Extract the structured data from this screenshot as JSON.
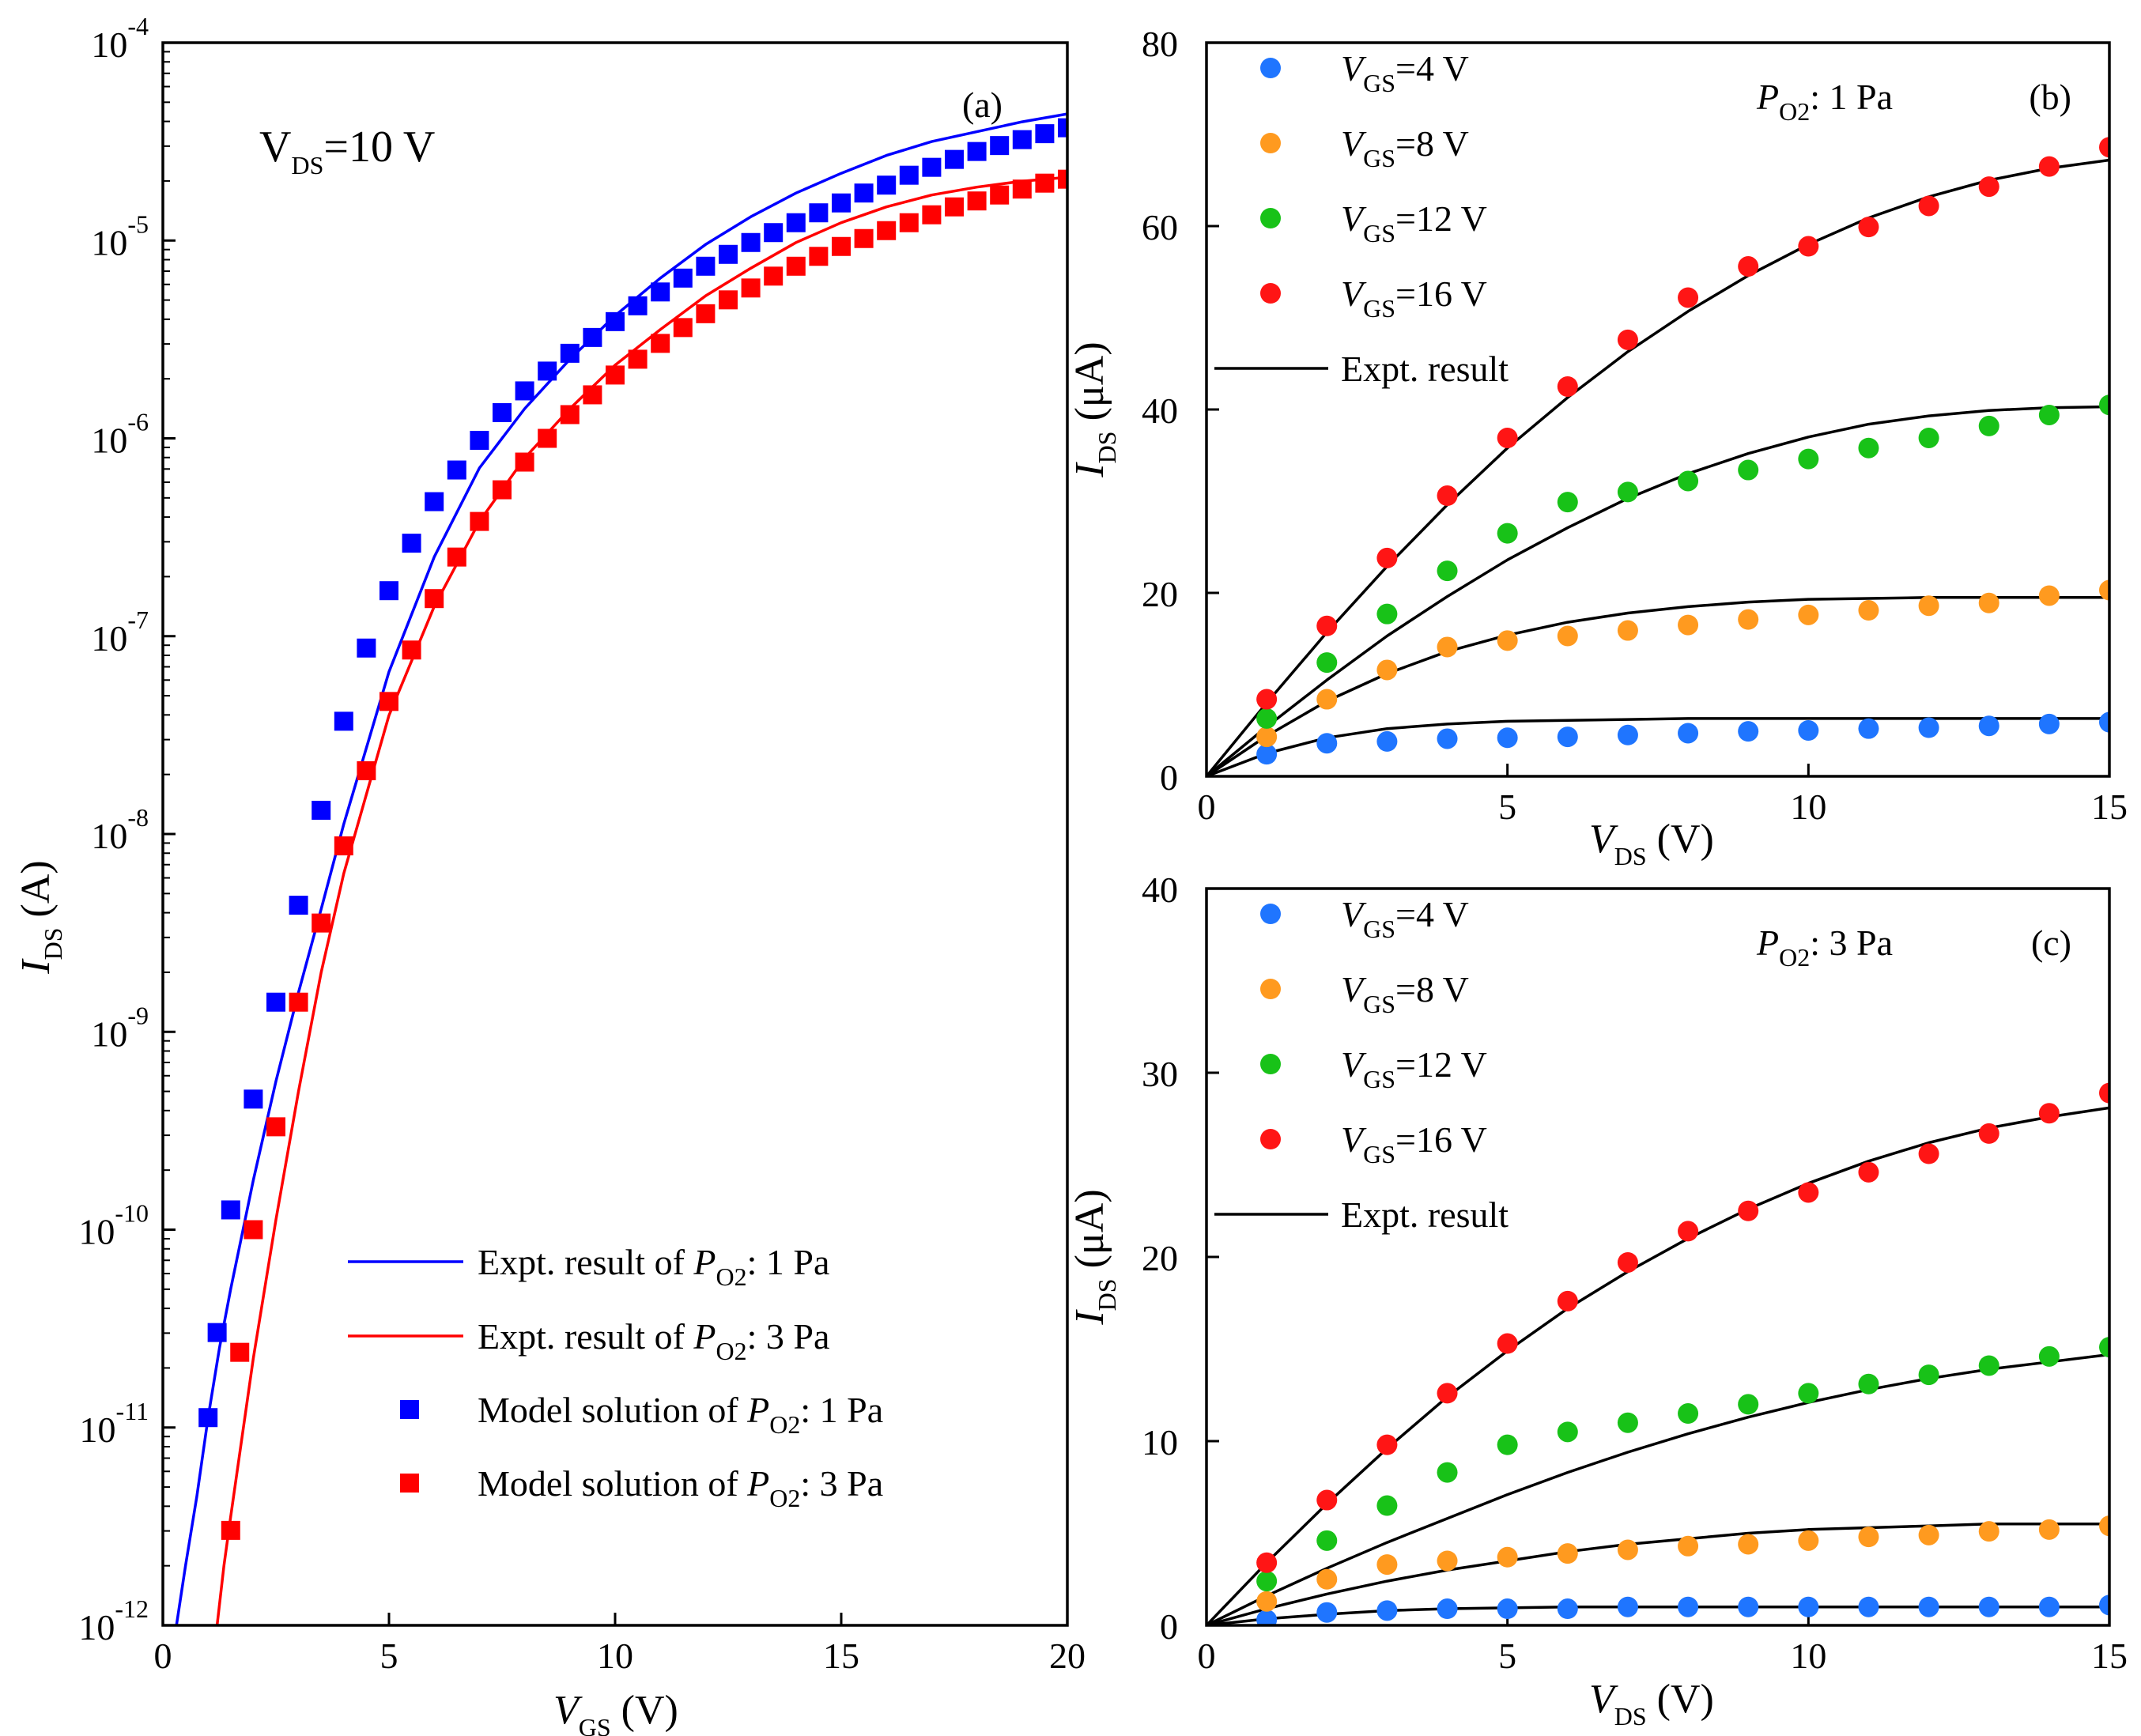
{
  "colors": {
    "blue": "#0000ff",
    "red": "#ff0000",
    "dot_blue": "#1f75ff",
    "dot_orange": "#ff9a1f",
    "dot_green": "#18c218",
    "dot_red": "#ff1515",
    "black": "#000000"
  },
  "chart_data": [
    {
      "id": "a",
      "panel_label": "(a)",
      "type": "line",
      "yscale": "log",
      "xlabel": {
        "main": "V",
        "sub": "GS",
        "rest": " (V)"
      },
      "ylabel": {
        "main": "I",
        "sub": "DS",
        "rest": " (A)"
      },
      "xlim": [
        0,
        20
      ],
      "ylim_exp": [
        -12,
        -4
      ],
      "xticks": [
        "0",
        "5",
        "10",
        "15",
        "20"
      ],
      "yticks": [
        {
          "base": "10",
          "exp": "-12"
        },
        {
          "base": "10",
          "exp": "-11"
        },
        {
          "base": "10",
          "exp": "-10"
        },
        {
          "base": "10",
          "exp": "-9"
        },
        {
          "base": "10",
          "exp": "-8"
        },
        {
          "base": "10",
          "exp": "-7"
        },
        {
          "base": "10",
          "exp": "-6"
        },
        {
          "base": "10",
          "exp": "-5"
        },
        {
          "base": "10",
          "exp": "-4"
        }
      ],
      "annotation": {
        "main": "V",
        "sub": "DS",
        "rest": "=10 V"
      },
      "legend_position": "bottom-right",
      "legend": [
        {
          "pre": "Expt. result of ",
          "sym": "P",
          "sub": "O2",
          "post": ": 1 Pa"
        },
        {
          "pre": "Expt. result of ",
          "sym": "P",
          "sub": "O2",
          "post": ": 3 Pa"
        },
        {
          "pre": "Model solution of ",
          "sym": "P",
          "sub": "O2",
          "post": ": 1 Pa"
        },
        {
          "pre": "Model solution of ",
          "sym": "P",
          "sub": "O2",
          "post": ": 3 Pa"
        }
      ],
      "series": [
        {
          "name": "Expt. result of PO2: 1 Pa",
          "kind": "line",
          "color": "blue",
          "x": [
            0.3,
            0.5,
            0.75,
            1.0,
            1.25,
            1.5,
            2.0,
            2.5,
            3.0,
            3.5,
            4.0,
            5.0,
            6.0,
            7.0,
            8.0,
            9.0,
            10.0,
            11.0,
            12.0,
            13.0,
            14.0,
            15.0,
            16.0,
            17.0,
            18.0,
            19.0,
            20.0
          ],
          "log10y": [
            -12.0,
            -11.7,
            -11.35,
            -10.95,
            -10.6,
            -10.3,
            -9.75,
            -9.25,
            -8.8,
            -8.38,
            -7.95,
            -7.18,
            -6.6,
            -6.15,
            -5.85,
            -5.6,
            -5.38,
            -5.19,
            -5.02,
            -4.88,
            -4.76,
            -4.66,
            -4.57,
            -4.5,
            -4.45,
            -4.4,
            -4.36
          ]
        },
        {
          "name": "Expt. result of PO2: 3 Pa",
          "kind": "line",
          "color": "red",
          "x": [
            1.2,
            1.35,
            1.5,
            1.75,
            2.0,
            2.5,
            3.0,
            3.5,
            4.0,
            5.0,
            6.0,
            7.0,
            8.0,
            9.0,
            10.0,
            11.0,
            12.0,
            13.0,
            14.0,
            15.0,
            16.0,
            17.0,
            18.0,
            19.0,
            20.0
          ],
          "log10y": [
            -12.0,
            -11.7,
            -11.45,
            -11.05,
            -10.65,
            -9.95,
            -9.3,
            -8.7,
            -8.2,
            -7.4,
            -6.85,
            -6.42,
            -6.1,
            -5.85,
            -5.63,
            -5.45,
            -5.28,
            -5.14,
            -5.01,
            -4.91,
            -4.83,
            -4.77,
            -4.73,
            -4.7,
            -4.68
          ]
        },
        {
          "name": "Model solution of PO2: 1 Pa",
          "kind": "square",
          "color": "blue",
          "x": [
            1.0,
            1.2,
            1.5,
            2.0,
            2.5,
            3.0,
            3.5,
            4.0,
            4.5,
            5.0,
            5.5,
            6.0,
            6.5,
            7.0,
            7.5,
            8.0,
            8.5,
            9.0,
            9.5,
            10.0,
            10.5,
            11.0,
            11.5,
            12.0,
            12.5,
            13.0,
            13.5,
            14.0,
            14.5,
            15.0,
            15.5,
            16.0,
            16.5,
            17.0,
            17.5,
            18.0,
            18.5,
            19.0,
            19.5,
            20.0
          ],
          "log10y": [
            -10.95,
            -10.52,
            -9.9,
            -9.34,
            -8.85,
            -8.36,
            -7.88,
            -7.43,
            -7.06,
            -6.77,
            -6.53,
            -6.32,
            -6.16,
            -6.01,
            -5.87,
            -5.76,
            -5.66,
            -5.57,
            -5.49,
            -5.41,
            -5.33,
            -5.26,
            -5.19,
            -5.13,
            -5.07,
            -5.01,
            -4.96,
            -4.91,
            -4.86,
            -4.81,
            -4.76,
            -4.72,
            -4.67,
            -4.63,
            -4.59,
            -4.55,
            -4.52,
            -4.49,
            -4.46,
            -4.43
          ]
        },
        {
          "name": "Model solution of PO2: 3 Pa",
          "kind": "square",
          "color": "red",
          "x": [
            1.5,
            1.7,
            2.0,
            2.5,
            3.0,
            3.5,
            4.0,
            4.5,
            5.0,
            5.5,
            6.0,
            6.5,
            7.0,
            7.5,
            8.0,
            8.5,
            9.0,
            9.5,
            10.0,
            10.5,
            11.0,
            11.5,
            12.0,
            12.5,
            13.0,
            13.5,
            14.0,
            14.5,
            15.0,
            15.5,
            16.0,
            16.5,
            17.0,
            17.5,
            18.0,
            18.5,
            19.0,
            19.5,
            20.0
          ],
          "log10y": [
            -11.52,
            -10.62,
            -10.0,
            -9.48,
            -8.85,
            -8.45,
            -8.06,
            -7.68,
            -7.33,
            -7.07,
            -6.81,
            -6.6,
            -6.42,
            -6.26,
            -6.12,
            -6.0,
            -5.88,
            -5.78,
            -5.68,
            -5.6,
            -5.52,
            -5.44,
            -5.37,
            -5.3,
            -5.24,
            -5.18,
            -5.13,
            -5.08,
            -5.03,
            -4.99,
            -4.95,
            -4.91,
            -4.87,
            -4.83,
            -4.8,
            -4.77,
            -4.74,
            -4.71,
            -4.69
          ]
        }
      ]
    },
    {
      "id": "b",
      "panel_label": "(b)",
      "type": "scatter",
      "condition": {
        "sym": "P",
        "sub": "O2",
        "post": ": 1 Pa"
      },
      "xlabel": {
        "main": "V",
        "sub": "DS",
        "rest": " (V)"
      },
      "ylabel": {
        "main": "I",
        "sub": "DS",
        "rest": " (μA)"
      },
      "xlim": [
        0,
        15
      ],
      "ylim": [
        0,
        80
      ],
      "xticks": [
        0,
        5,
        10,
        15
      ],
      "yticks": [
        0,
        20,
        40,
        60,
        80
      ],
      "legend_position": "top-left",
      "legend": [
        {
          "main": "V",
          "sub": "GS",
          "rest": "=4 V",
          "color": "dot_blue"
        },
        {
          "main": "V",
          "sub": "GS",
          "rest": "=8 V",
          "color": "dot_orange"
        },
        {
          "main": "V",
          "sub": "GS",
          "rest": "=12 V",
          "color": "dot_green"
        },
        {
          "main": "V",
          "sub": "GS",
          "rest": "=16 V",
          "color": "dot_red"
        },
        {
          "line": true,
          "text": "Expt. result"
        }
      ],
      "x_points": [
        1,
        2,
        3,
        4,
        5,
        6,
        7,
        8,
        9,
        10,
        11,
        12,
        13,
        14,
        15
      ],
      "series": [
        {
          "name": "VGS=4 V",
          "color": "dot_blue",
          "points": [
            2.4,
            3.6,
            3.8,
            4.1,
            4.2,
            4.3,
            4.5,
            4.7,
            4.9,
            5.0,
            5.2,
            5.3,
            5.5,
            5.7,
            5.9
          ],
          "fit_x": [
            0,
            1,
            2,
            3,
            4,
            5,
            6,
            7,
            8,
            9,
            10,
            11,
            12,
            13,
            14,
            15
          ],
          "fit_y": [
            0,
            2.5,
            4.2,
            5.2,
            5.7,
            6.0,
            6.1,
            6.2,
            6.3,
            6.3,
            6.3,
            6.3,
            6.3,
            6.3,
            6.3,
            6.3
          ]
        },
        {
          "name": "VGS=8 V",
          "color": "dot_orange",
          "points": [
            4.3,
            8.4,
            11.6,
            14.1,
            14.8,
            15.3,
            15.9,
            16.5,
            17.1,
            17.6,
            18.1,
            18.6,
            18.9,
            19.7,
            20.3
          ],
          "fit_x": [
            0,
            1,
            2,
            3,
            4,
            5,
            6,
            7,
            8,
            9,
            10,
            11,
            12,
            13,
            14,
            15
          ],
          "fit_y": [
            0,
            4.4,
            8.2,
            11.2,
            13.6,
            15.4,
            16.8,
            17.8,
            18.5,
            19.0,
            19.3,
            19.4,
            19.5,
            19.5,
            19.5,
            19.5
          ]
        },
        {
          "name": "VGS=12 V",
          "color": "dot_green",
          "points": [
            6.3,
            12.4,
            17.7,
            22.4,
            26.5,
            29.9,
            31.0,
            32.2,
            33.4,
            34.6,
            35.8,
            36.9,
            38.2,
            39.4,
            40.5
          ],
          "fit_x": [
            0,
            1,
            2,
            3,
            4,
            5,
            6,
            7,
            8,
            9,
            10,
            11,
            12,
            13,
            14,
            15
          ],
          "fit_y": [
            0,
            5.4,
            10.5,
            15.3,
            19.6,
            23.6,
            27.1,
            30.3,
            33.0,
            35.2,
            37.0,
            38.4,
            39.3,
            39.9,
            40.2,
            40.3
          ]
        },
        {
          "name": "VGS=16 V",
          "color": "dot_red",
          "points": [
            8.4,
            16.4,
            23.8,
            30.6,
            36.9,
            42.5,
            47.6,
            52.2,
            55.6,
            57.8,
            59.9,
            62.2,
            64.3,
            66.5,
            68.6
          ],
          "fit_x": [
            0,
            1,
            2,
            3,
            4,
            5,
            6,
            7,
            8,
            9,
            10,
            11,
            12,
            13,
            14,
            15
          ],
          "fit_y": [
            0,
            8.0,
            15.7,
            22.9,
            29.6,
            35.8,
            41.3,
            46.3,
            50.7,
            54.6,
            58.0,
            60.9,
            63.2,
            65.0,
            66.3,
            67.2
          ]
        }
      ]
    },
    {
      "id": "c",
      "panel_label": "(c)",
      "type": "scatter",
      "condition": {
        "sym": "P",
        "sub": "O2",
        "post": ": 3 Pa"
      },
      "xlabel": {
        "main": "V",
        "sub": "DS",
        "rest": " (V)"
      },
      "ylabel": {
        "main": "I",
        "sub": "DS",
        "rest": " (μA)"
      },
      "xlim": [
        0,
        15
      ],
      "ylim": [
        0,
        40
      ],
      "xticks": [
        0,
        5,
        10,
        15
      ],
      "yticks": [
        0,
        10,
        20,
        30,
        40
      ],
      "legend_position": "top-left",
      "legend": [
        {
          "main": "V",
          "sub": "GS",
          "rest": "=4 V",
          "color": "dot_blue"
        },
        {
          "main": "V",
          "sub": "GS",
          "rest": "=8 V",
          "color": "dot_orange"
        },
        {
          "main": "V",
          "sub": "GS",
          "rest": "=12 V",
          "color": "dot_green"
        },
        {
          "main": "V",
          "sub": "GS",
          "rest": "=16 V",
          "color": "dot_red"
        },
        {
          "line": true,
          "text": "Expt. result"
        }
      ],
      "x_points": [
        1,
        2,
        3,
        4,
        5,
        6,
        7,
        8,
        9,
        10,
        11,
        12,
        13,
        14,
        15
      ],
      "series": [
        {
          "name": "VGS=4 V",
          "color": "dot_blue",
          "points": [
            0.3,
            0.7,
            0.8,
            0.9,
            0.9,
            0.9,
            1.0,
            1.0,
            1.0,
            1.0,
            1.0,
            1.0,
            1.0,
            1.0,
            1.1
          ],
          "fit_x": [
            0,
            1,
            2,
            3,
            4,
            5,
            6,
            7,
            8,
            9,
            10,
            11,
            12,
            13,
            14,
            15
          ],
          "fit_y": [
            0,
            0.35,
            0.6,
            0.8,
            0.9,
            0.95,
            1.0,
            1.0,
            1.0,
            1.0,
            1.0,
            1.0,
            1.0,
            1.0,
            1.0,
            1.0
          ]
        },
        {
          "name": "VGS=8 V",
          "color": "dot_orange",
          "points": [
            1.3,
            2.5,
            3.3,
            3.5,
            3.7,
            3.9,
            4.1,
            4.3,
            4.4,
            4.6,
            4.8,
            4.9,
            5.1,
            5.2,
            5.4
          ],
          "fit_x": [
            0,
            1,
            2,
            3,
            4,
            5,
            6,
            7,
            8,
            9,
            10,
            11,
            12,
            13,
            14,
            15
          ],
          "fit_y": [
            0,
            0.9,
            1.7,
            2.4,
            3.0,
            3.5,
            4.0,
            4.4,
            4.7,
            5.0,
            5.2,
            5.3,
            5.4,
            5.5,
            5.5,
            5.5
          ]
        },
        {
          "name": "VGS=12 V",
          "color": "dot_green",
          "points": [
            2.4,
            4.6,
            6.5,
            8.3,
            9.8,
            10.5,
            11.0,
            11.5,
            12.0,
            12.6,
            13.1,
            13.6,
            14.1,
            14.6,
            15.1
          ],
          "fit_x": [
            0,
            1,
            2,
            3,
            4,
            5,
            6,
            7,
            8,
            9,
            10,
            11,
            12,
            13,
            14,
            15
          ],
          "fit_y": [
            0,
            1.6,
            3.1,
            4.5,
            5.8,
            7.1,
            8.3,
            9.4,
            10.4,
            11.3,
            12.1,
            12.8,
            13.4,
            13.9,
            14.3,
            14.7
          ]
        },
        {
          "name": "VGS=16 V",
          "color": "dot_red",
          "points": [
            3.4,
            6.8,
            9.8,
            12.6,
            15.3,
            17.6,
            19.7,
            21.4,
            22.5,
            23.5,
            24.6,
            25.6,
            26.7,
            27.8,
            28.9
          ],
          "fit_x": [
            0,
            1,
            2,
            3,
            4,
            5,
            6,
            7,
            8,
            9,
            10,
            11,
            12,
            13,
            14,
            15
          ],
          "fit_y": [
            0,
            3.4,
            6.6,
            9.6,
            12.4,
            14.9,
            17.2,
            19.2,
            21.0,
            22.6,
            24.0,
            25.2,
            26.2,
            27.0,
            27.6,
            28.1
          ]
        }
      ]
    }
  ]
}
